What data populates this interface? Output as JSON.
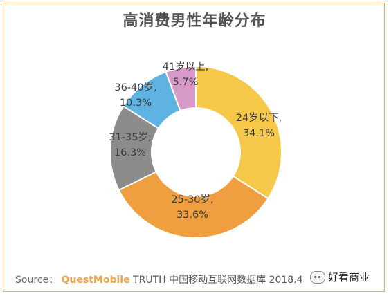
{
  "chart_data": {
    "type": "donut",
    "title": "高消费男性年龄分布",
    "slices": [
      {
        "label": "24岁以下,",
        "value": 34.1,
        "value_text": "34.1%",
        "color": "#f6c84a"
      },
      {
        "label": "25-30岁,",
        "value": 33.6,
        "value_text": "33.6%",
        "color": "#ef9f3f"
      },
      {
        "label": "31-35岁,",
        "value": 16.3,
        "value_text": "16.3%",
        "color": "#8c8c8c"
      },
      {
        "label": "36-40岁,",
        "value": 10.3,
        "value_text": "10.3%",
        "color": "#5eb3e3"
      },
      {
        "label": "41岁以上,",
        "value": 5.7,
        "value_text": "5.7%",
        "color": "#d79ac8"
      }
    ]
  },
  "footer": {
    "source_label": "Source：",
    "source_brand_quest": "QuestMobile",
    "source_text": " TRUTH 中国移动互联网数据库 2018.4",
    "watermark": "好看商业"
  }
}
